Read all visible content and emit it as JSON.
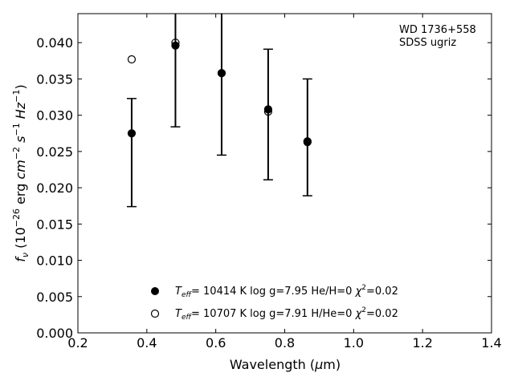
{
  "chart_data": {
    "type": "scatter",
    "annotation_lines": [
      "WD 1736+558",
      "SDSS ugriz"
    ],
    "xlabel": "Wavelength (μm)",
    "ylabel": "f_ν (10^−26 erg cm^−2 s^−1 Hz^−1)",
    "xlim": [
      0.2,
      1.4
    ],
    "ylim": [
      0.0,
      0.044
    ],
    "xticks": [
      0.2,
      0.4,
      0.6,
      0.8,
      1.0,
      1.2,
      1.4
    ],
    "xtick_labels": [
      "0.2",
      "0.4",
      "0.6",
      "0.8",
      "1.0",
      "1.2",
      "1.4"
    ],
    "yticks": [
      0.0,
      0.005,
      0.01,
      0.015,
      0.02,
      0.025,
      0.03,
      0.035,
      0.04
    ],
    "ytick_labels": [
      "0.000",
      "0.005",
      "0.010",
      "0.015",
      "0.020",
      "0.025",
      "0.030",
      "0.035",
      "0.040"
    ],
    "observed": {
      "x": [
        0.356,
        0.483,
        0.617,
        0.752,
        0.866
      ],
      "y": [
        0.0275,
        0.0398,
        0.0358,
        0.0306,
        0.0262
      ],
      "yerr_low": [
        0.0174,
        0.0284,
        0.0245,
        0.0211,
        0.0189
      ],
      "yerr_high": [
        0.0323,
        0.0445,
        0.0445,
        0.0391,
        0.035
      ]
    },
    "series": [
      {
        "marker": "filled",
        "x": [
          0.356,
          0.483,
          0.617,
          0.752,
          0.866
        ],
        "y": [
          0.0275,
          0.0396,
          0.0358,
          0.0308,
          0.0264
        ],
        "label": "Teff= 10414 K  log g=7.95  He/H=0  χ2=0.02"
      },
      {
        "marker": "open",
        "x": [
          0.356,
          0.483,
          0.617,
          0.752,
          0.866
        ],
        "y": [
          0.0377,
          0.04,
          0.0358,
          0.0305,
          0.0263
        ],
        "label": "Teff= 10707 K  log g=7.91  H/He=0  χ2=0.02"
      }
    ],
    "legend_placement": "lower-center"
  }
}
